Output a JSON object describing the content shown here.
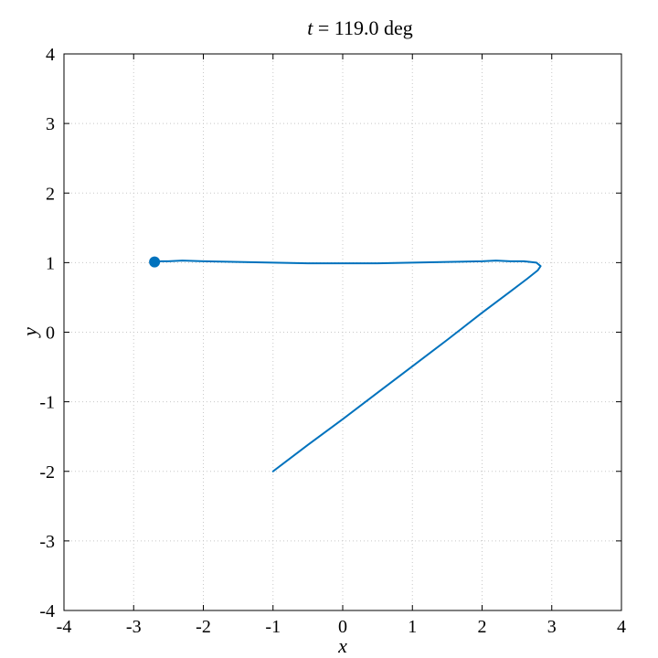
{
  "chart_data": {
    "type": "line",
    "title_var": "t",
    "title_rest": " = 119.0 deg",
    "xlabel": "x",
    "ylabel": "y",
    "xlim": [
      -4,
      4
    ],
    "ylim": [
      -4,
      4
    ],
    "xticks": [
      -4,
      -3,
      -2,
      -1,
      0,
      1,
      2,
      3,
      4
    ],
    "yticks": [
      -4,
      -3,
      -2,
      -1,
      0,
      1,
      2,
      3,
      4
    ],
    "tick_labels_x": [
      "-4",
      "-3",
      "-2",
      "-1",
      "0",
      "1",
      "2",
      "3",
      "4"
    ],
    "tick_labels_y": [
      "-4",
      "-3",
      "-2",
      "-1",
      "0",
      "1",
      "2",
      "3",
      "4"
    ],
    "grid": true,
    "line_color": "#0072BD",
    "series": [
      {
        "x": [
          -1.0,
          -0.5,
          0.0,
          0.5,
          1.0,
          1.5,
          2.0,
          2.4,
          2.65,
          2.8,
          2.84,
          2.78,
          2.6,
          2.4,
          2.2,
          2.0,
          1.5,
          1.0,
          0.5,
          0.0,
          -0.5,
          -1.0,
          -1.5,
          -2.0,
          -2.3,
          -2.5,
          -2.6,
          -2.7
        ],
        "y": [
          -2.0,
          -1.62,
          -1.25,
          -0.87,
          -0.49,
          -0.11,
          0.28,
          0.58,
          0.77,
          0.89,
          0.95,
          1.0,
          1.02,
          1.02,
          1.03,
          1.02,
          1.01,
          1.0,
          0.99,
          0.99,
          0.99,
          1.0,
          1.01,
          1.02,
          1.03,
          1.02,
          1.02,
          1.01
        ]
      }
    ],
    "marker_point": {
      "x": -2.7,
      "y": 1.01
    }
  }
}
